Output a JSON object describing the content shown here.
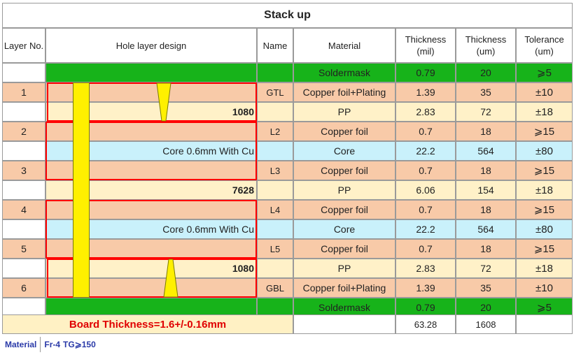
{
  "title": "Stack up",
  "headers": {
    "layer_no": "Layer No.",
    "hole_design": "Hole layer design",
    "name": "Name",
    "material": "Material",
    "thickness_mil": "Thickness\n(mil)",
    "thickness_um": "Thickness\n(um)",
    "tolerance": "Tolerance\n(um)"
  },
  "rows": [
    {
      "layer": "",
      "name": "",
      "material": "Soldermask",
      "mil": "0.79",
      "um": "20",
      "tol": "⩾5",
      "color": "#17b31a",
      "hole_label": ""
    },
    {
      "layer": "1",
      "name": "GTL",
      "material": "Copper foil+Plating",
      "mil": "1.39",
      "um": "35",
      "tol": "±10",
      "color": "#f8caa8",
      "hole_label": ""
    },
    {
      "layer": "",
      "name": "",
      "material": "PP",
      "mil": "2.83",
      "um": "72",
      "tol": "±18",
      "color": "#fff1c8",
      "hole_label": "1080"
    },
    {
      "layer": "2",
      "name": "L2",
      "material": "Copper foil",
      "mil": "0.7",
      "um": "18",
      "tol": "⩾15",
      "color": "#f8caa8",
      "hole_label": ""
    },
    {
      "layer": "",
      "name": "",
      "material": "Core",
      "mil": "22.2",
      "um": "564",
      "tol": "±80",
      "color": "#c9f1fb",
      "hole_label": "Core 0.6mm With Cu"
    },
    {
      "layer": "3",
      "name": "L3",
      "material": "Copper foil",
      "mil": "0.7",
      "um": "18",
      "tol": "⩾15",
      "color": "#f8caa8",
      "hole_label": ""
    },
    {
      "layer": "",
      "name": "",
      "material": "PP",
      "mil": "6.06",
      "um": "154",
      "tol": "±18",
      "color": "#fff1c8",
      "hole_label": "7628"
    },
    {
      "layer": "4",
      "name": "L4",
      "material": "Copper foil",
      "mil": "0.7",
      "um": "18",
      "tol": "⩾15",
      "color": "#f8caa8",
      "hole_label": ""
    },
    {
      "layer": "",
      "name": "",
      "material": "Core",
      "mil": "22.2",
      "um": "564",
      "tol": "±80",
      "color": "#c9f1fb",
      "hole_label": "Core 0.6mm With Cu"
    },
    {
      "layer": "5",
      "name": "L5",
      "material": "Copper foil",
      "mil": "0.7",
      "um": "18",
      "tol": "⩾15",
      "color": "#f8caa8",
      "hole_label": ""
    },
    {
      "layer": "",
      "name": "",
      "material": "PP",
      "mil": "2.83",
      "um": "72",
      "tol": "±18",
      "color": "#fff1c8",
      "hole_label": "1080"
    },
    {
      "layer": "6",
      "name": "GBL",
      "material": "Copper foil+Plating",
      "mil": "1.39",
      "um": "35",
      "tol": "±10",
      "color": "#f8caa8",
      "hole_label": ""
    },
    {
      "layer": "",
      "name": "",
      "material": "Soldermask",
      "mil": "0.79",
      "um": "20",
      "tol": "⩾5",
      "color": "#17b31a",
      "hole_label": ""
    }
  ],
  "board_thickness": "Board Thickness=1.6+/-0.16mm",
  "total_mil": "63.28",
  "total_um": "1608",
  "footer": {
    "material_label": "Material",
    "material_value": "Fr-4",
    "tg_value": "TG⩾150"
  },
  "colors": {
    "soldermask": "#17b31a",
    "copper": "#f8caa8",
    "prepreg": "#fff1c8",
    "core": "#c9f1fb",
    "via": "#fff000",
    "outline": "#ff0000"
  }
}
